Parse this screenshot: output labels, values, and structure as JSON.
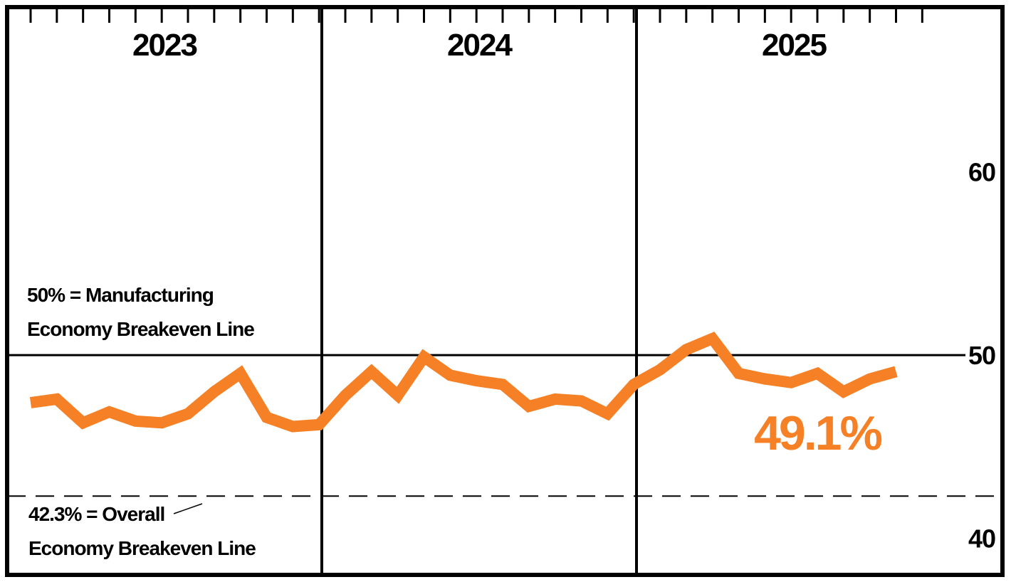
{
  "chart_data": {
    "type": "line",
    "title": "",
    "xlabel": "",
    "ylabel": "",
    "x_unit": "month",
    "years": [
      "2023",
      "2024",
      "2025"
    ],
    "ylim": [
      38,
      69
    ],
    "yticks": [
      {
        "value": 40,
        "label": "40"
      },
      {
        "value": 50,
        "label": "50"
      },
      {
        "value": 60,
        "label": "60"
      }
    ],
    "grid": false,
    "legend": "none",
    "series": [
      {
        "color": "#F58025",
        "values": [
          47.4,
          47.6,
          46.3,
          46.9,
          46.4,
          46.3,
          46.8,
          48.0,
          49.0,
          46.6,
          46.1,
          46.2,
          47.8,
          49.1,
          47.8,
          49.9,
          48.9,
          48.6,
          48.4,
          47.2,
          47.6,
          47.5,
          46.8,
          48.4,
          49.2,
          50.3,
          50.9,
          49.0,
          48.7,
          48.5,
          49.0,
          48.0,
          48.7,
          49.1
        ]
      }
    ],
    "reference_lines": [
      {
        "value": 50,
        "style": "solid",
        "label_lines": [
          "50% = Manufacturing",
          "Economy Breakeven Line"
        ]
      },
      {
        "value": 42.3,
        "style": "dashed",
        "label_lines": [
          "42.3% = Overall",
          "Economy Breakeven Line"
        ]
      }
    ],
    "callout": {
      "text": "49.1%",
      "color": "#F58025"
    }
  }
}
